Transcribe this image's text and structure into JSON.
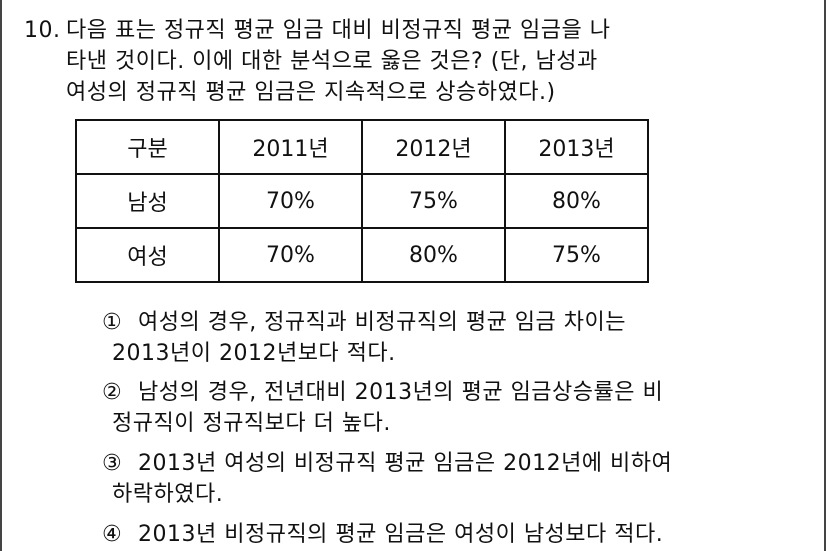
{
  "question": {
    "number": "10.",
    "lines": [
      "다음 표는 정규직 평균 임금 대비 비정규직 평균 임금을 나",
      "타낸 것이다. 이에 대한 분석으로 옳은 것은? (단, 남성과",
      "여성의 정규직 평균 임금은 지속적으로 상승하였다.)"
    ]
  },
  "table": {
    "header": [
      "구분",
      "2011년",
      "2012년",
      "2013년"
    ],
    "rows": [
      [
        "남성",
        "70%",
        "75%",
        "80%"
      ],
      [
        "여성",
        "70%",
        "80%",
        "75%"
      ]
    ]
  },
  "options": [
    {
      "marker": "①",
      "lines": [
        "여성의 경우, 정규직과 비정규직의 평균 임금 차이는",
        "2013년이 2012년보다 적다."
      ]
    },
    {
      "marker": "②",
      "lines": [
        "남성의 경우, 전년대비 2013년의 평균 임금상승률은 비",
        "정규직이 정규직보다 더 높다."
      ]
    },
    {
      "marker": "③",
      "lines": [
        "2013년 여성의 비정규직 평균 임금은 2012년에 비하여",
        "하락하였다."
      ]
    },
    {
      "marker": "④",
      "lines": [
        "2013년 비정규직의 평균 임금은 여성이 남성보다 적다."
      ]
    }
  ]
}
